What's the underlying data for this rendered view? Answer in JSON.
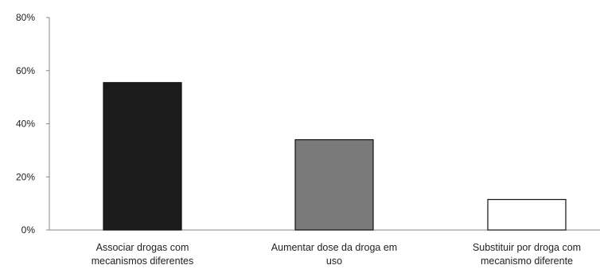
{
  "chart_data": {
    "type": "bar",
    "title": "",
    "xlabel": "",
    "ylabel": "",
    "ylim": [
      0,
      80
    ],
    "yticks": [
      0,
      20,
      40,
      60,
      80
    ],
    "tick_suffix": "%",
    "grid": false,
    "legend": "none",
    "categories": [
      [
        "Associar drogas com",
        "mecanismos diferentes"
      ],
      [
        "Aumentar dose da droga em",
        "uso"
      ],
      [
        "Substituir por droga com",
        "mecanismo diferente"
      ]
    ],
    "values": [
      55.5,
      34,
      11.5
    ],
    "bar_colors": [
      "#1c1c1c",
      "#7a7a7a",
      "#ffffff"
    ],
    "bar_outline": "#111111"
  }
}
